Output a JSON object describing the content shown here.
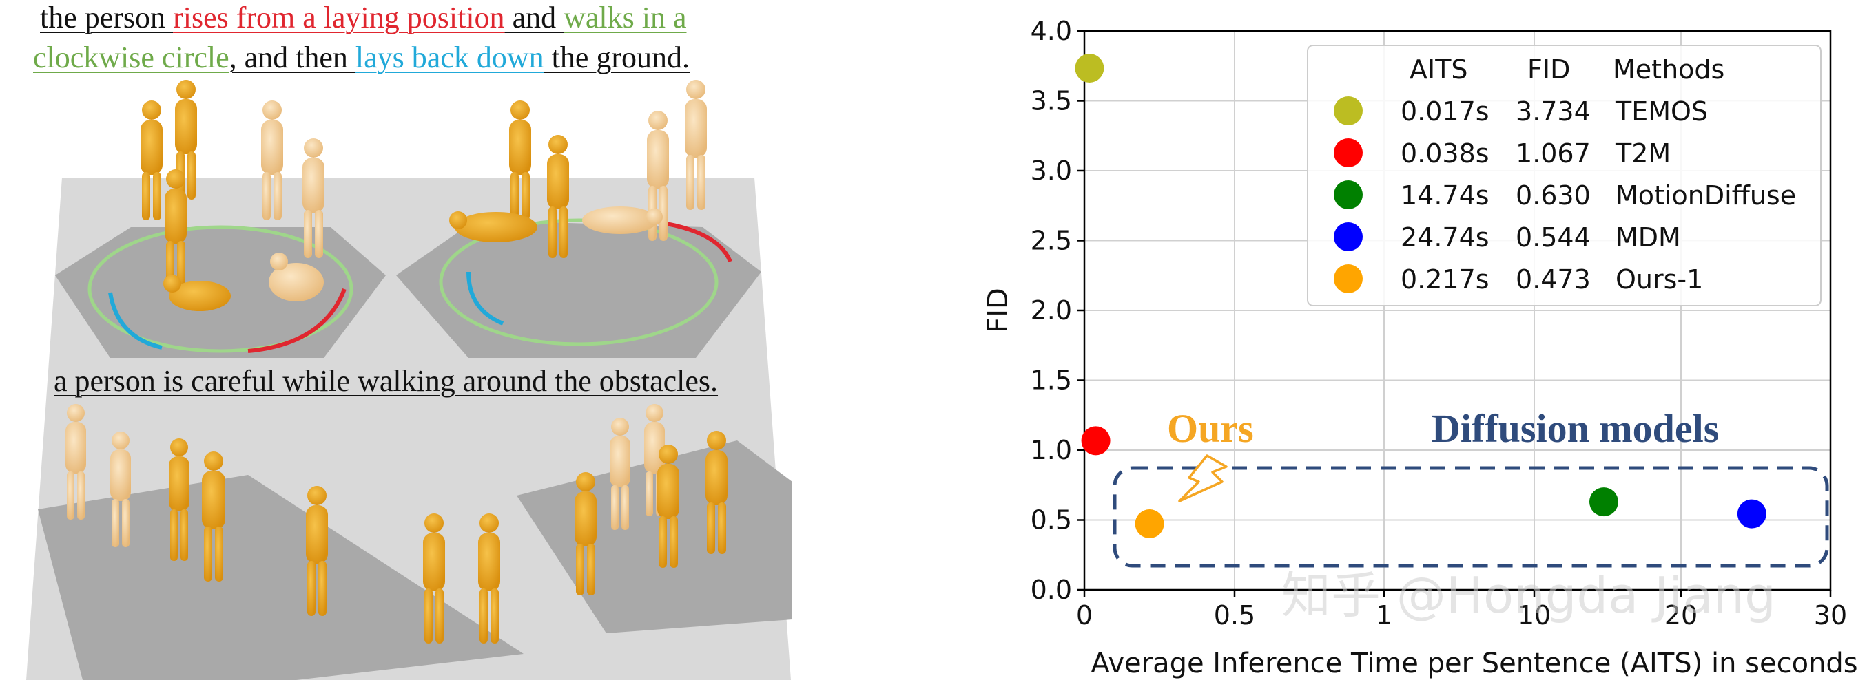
{
  "left_panel": {
    "caption_top": {
      "line1": [
        {
          "text": "the person ",
          "color": "black"
        },
        {
          "text": "rises from a laying position",
          "color": "red"
        },
        {
          "text": " and ",
          "color": "black"
        },
        {
          "text": "walks in a",
          "color": "green"
        }
      ],
      "line2": [
        {
          "text": "clockwise circle",
          "color": "green"
        },
        {
          "text": ", and then ",
          "color": "black"
        },
        {
          "text": "lays back down",
          "color": "blue"
        },
        {
          "text": " the ground.",
          "color": "black"
        }
      ]
    },
    "caption_bottom": "a person is careful while walking around the obstacles."
  },
  "chart_data": {
    "type": "scatter",
    "xlabel": "Average Inference Time per Sentence (AITS) in seconds",
    "ylabel": "FID",
    "x_scale": "broken-linear",
    "x_ticks": [
      "0",
      "0.5",
      "1",
      "10",
      "20",
      "30"
    ],
    "y_ticks": [
      "0.0",
      "0.5",
      "1.0",
      "1.5",
      "2.0",
      "2.5",
      "3.0",
      "3.5",
      "4.0"
    ],
    "ylim": [
      0,
      4
    ],
    "grid": true,
    "legend_position": "top-right",
    "legend_headers": [
      "AITS",
      "FID",
      "Methods"
    ],
    "series": [
      {
        "name": "TEMOS",
        "aits_label": "0.017s",
        "fid_label": "3.734",
        "x": 0.017,
        "y": 3.734,
        "color": "#bcbd22"
      },
      {
        "name": "T2M",
        "aits_label": "0.038s",
        "fid_label": "1.067",
        "x": 0.038,
        "y": 1.067,
        "color": "#ff0000"
      },
      {
        "name": "MotionDiffuse",
        "aits_label": "14.74s",
        "fid_label": "0.630",
        "x": 14.74,
        "y": 0.63,
        "color": "#008000"
      },
      {
        "name": "MDM",
        "aits_label": "24.74s",
        "fid_label": "0.544",
        "x": 24.74,
        "y": 0.544,
        "color": "#0000ff"
      },
      {
        "name": "Ours-1",
        "aits_label": "0.217s",
        "fid_label": "0.473",
        "x": 0.217,
        "y": 0.473,
        "color": "#ffa500"
      }
    ],
    "annotations": [
      {
        "text": "Ours",
        "color": "#f5a623"
      },
      {
        "text": "Diffusion models",
        "color": "#2f4b7c"
      }
    ],
    "watermark": "知乎 @Hongda Jiang"
  }
}
